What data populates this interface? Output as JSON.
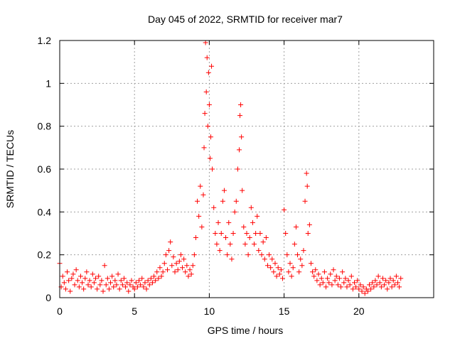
{
  "chart_data": {
    "type": "scatter",
    "title": "Day 045 of 2022, SRMTID for receiver mar7",
    "xlabel": "GPS time / hours",
    "ylabel": "SRMTID / TECUs",
    "xlim": [
      0,
      25
    ],
    "ylim": [
      0,
      1.2
    ],
    "x_ticks": [
      0,
      5,
      10,
      15,
      20
    ],
    "y_ticks": [
      0,
      0.2,
      0.4,
      0.6,
      0.8,
      1,
      1.2
    ],
    "x_tick_labels": [
      "0",
      "5",
      "10",
      "15",
      "20"
    ],
    "y_tick_labels": [
      "0",
      "0.2",
      "0.4",
      "0.6",
      "0.8",
      "1",
      "1.2"
    ],
    "grid": true,
    "marker": "+",
    "color": "#ff0000",
    "series": [
      {
        "name": "SRMTID",
        "points": [
          [
            0.0,
            0.16
          ],
          [
            0.1,
            0.05
          ],
          [
            0.2,
            0.1
          ],
          [
            0.3,
            0.07
          ],
          [
            0.4,
            0.04
          ],
          [
            0.5,
            0.12
          ],
          [
            0.6,
            0.08
          ],
          [
            0.7,
            0.03
          ],
          [
            0.8,
            0.09
          ],
          [
            0.9,
            0.11
          ],
          [
            1.0,
            0.06
          ],
          [
            1.1,
            0.13
          ],
          [
            1.2,
            0.08
          ],
          [
            1.3,
            0.05
          ],
          [
            1.4,
            0.1
          ],
          [
            1.5,
            0.07
          ],
          [
            1.6,
            0.04
          ],
          [
            1.7,
            0.09
          ],
          [
            1.8,
            0.12
          ],
          [
            1.9,
            0.06
          ],
          [
            2.0,
            0.08
          ],
          [
            2.1,
            0.05
          ],
          [
            2.2,
            0.11
          ],
          [
            2.3,
            0.07
          ],
          [
            2.4,
            0.09
          ],
          [
            2.5,
            0.04
          ],
          [
            2.6,
            0.1
          ],
          [
            2.7,
            0.06
          ],
          [
            2.8,
            0.08
          ],
          [
            2.9,
            0.03
          ],
          [
            3.0,
            0.15
          ],
          [
            3.1,
            0.06
          ],
          [
            3.2,
            0.09
          ],
          [
            3.3,
            0.04
          ],
          [
            3.4,
            0.07
          ],
          [
            3.5,
            0.1
          ],
          [
            3.6,
            0.05
          ],
          [
            3.7,
            0.08
          ],
          [
            3.8,
            0.06
          ],
          [
            3.9,
            0.11
          ],
          [
            4.0,
            0.04
          ],
          [
            4.1,
            0.08
          ],
          [
            4.2,
            0.06
          ],
          [
            4.3,
            0.09
          ],
          [
            4.4,
            0.05
          ],
          [
            4.5,
            0.07
          ],
          [
            4.6,
            0.03
          ],
          [
            4.7,
            0.06
          ],
          [
            4.8,
            0.08
          ],
          [
            4.9,
            0.05
          ],
          [
            5.0,
            0.04
          ],
          [
            5.1,
            0.07
          ],
          [
            5.2,
            0.05
          ],
          [
            5.3,
            0.08
          ],
          [
            5.4,
            0.06
          ],
          [
            5.5,
            0.09
          ],
          [
            5.6,
            0.05
          ],
          [
            5.7,
            0.07
          ],
          [
            5.8,
            0.04
          ],
          [
            5.9,
            0.08
          ],
          [
            6.0,
            0.06
          ],
          [
            6.1,
            0.09
          ],
          [
            6.2,
            0.07
          ],
          [
            6.3,
            0.1
          ],
          [
            6.4,
            0.08
          ],
          [
            6.5,
            0.12
          ],
          [
            6.6,
            0.09
          ],
          [
            6.7,
            0.14
          ],
          [
            6.8,
            0.1
          ],
          [
            6.9,
            0.12
          ],
          [
            7.0,
            0.16
          ],
          [
            7.1,
            0.2
          ],
          [
            7.2,
            0.13
          ],
          [
            7.3,
            0.22
          ],
          [
            7.4,
            0.26
          ],
          [
            7.5,
            0.15
          ],
          [
            7.6,
            0.19
          ],
          [
            7.7,
            0.12
          ],
          [
            7.8,
            0.16
          ],
          [
            7.9,
            0.13
          ],
          [
            8.0,
            0.17
          ],
          [
            8.1,
            0.2
          ],
          [
            8.2,
            0.14
          ],
          [
            8.3,
            0.18
          ],
          [
            8.4,
            0.12
          ],
          [
            8.5,
            0.15
          ],
          [
            8.6,
            0.1
          ],
          [
            8.7,
            0.13
          ],
          [
            8.8,
            0.11
          ],
          [
            8.9,
            0.15
          ],
          [
            9.0,
            0.2
          ],
          [
            9.1,
            0.28
          ],
          [
            9.2,
            0.45
          ],
          [
            9.3,
            0.38
          ],
          [
            9.4,
            0.52
          ],
          [
            9.5,
            0.33
          ],
          [
            9.6,
            0.48
          ],
          [
            9.65,
            0.7
          ],
          [
            9.7,
            0.86
          ],
          [
            9.75,
            1.19
          ],
          [
            9.8,
            0.96
          ],
          [
            9.85,
            1.12
          ],
          [
            9.9,
            0.8
          ],
          [
            9.95,
            1.05
          ],
          [
            10.0,
            0.9
          ],
          [
            10.05,
            0.65
          ],
          [
            10.1,
            0.75
          ],
          [
            10.15,
            1.08
          ],
          [
            10.2,
            0.6
          ],
          [
            10.3,
            0.42
          ],
          [
            10.4,
            0.3
          ],
          [
            10.5,
            0.25
          ],
          [
            10.6,
            0.35
          ],
          [
            10.7,
            0.22
          ],
          [
            10.8,
            0.3
          ],
          [
            10.9,
            0.45
          ],
          [
            11.0,
            0.5
          ],
          [
            11.1,
            0.28
          ],
          [
            11.2,
            0.2
          ],
          [
            11.3,
            0.35
          ],
          [
            11.4,
            0.25
          ],
          [
            11.5,
            0.18
          ],
          [
            11.6,
            0.3
          ],
          [
            11.7,
            0.4
          ],
          [
            11.8,
            0.45
          ],
          [
            11.9,
            0.6
          ],
          [
            12.0,
            0.69
          ],
          [
            12.05,
            0.85
          ],
          [
            12.1,
            0.9
          ],
          [
            12.15,
            0.75
          ],
          [
            12.2,
            0.5
          ],
          [
            12.3,
            0.33
          ],
          [
            12.4,
            0.25
          ],
          [
            12.5,
            0.3
          ],
          [
            12.6,
            0.2
          ],
          [
            12.7,
            0.28
          ],
          [
            12.8,
            0.42
          ],
          [
            12.9,
            0.35
          ],
          [
            13.0,
            0.25
          ],
          [
            13.1,
            0.3
          ],
          [
            13.2,
            0.38
          ],
          [
            13.3,
            0.22
          ],
          [
            13.4,
            0.3
          ],
          [
            13.5,
            0.2
          ],
          [
            13.6,
            0.26
          ],
          [
            13.7,
            0.18
          ],
          [
            13.8,
            0.28
          ],
          [
            13.9,
            0.15
          ],
          [
            14.0,
            0.2
          ],
          [
            14.1,
            0.14
          ],
          [
            14.2,
            0.18
          ],
          [
            14.3,
            0.12
          ],
          [
            14.4,
            0.16
          ],
          [
            14.5,
            0.1
          ],
          [
            14.6,
            0.14
          ],
          [
            14.7,
            0.11
          ],
          [
            14.8,
            0.13
          ],
          [
            14.9,
            0.09
          ],
          [
            15.0,
            0.41
          ],
          [
            15.1,
            0.3
          ],
          [
            15.2,
            0.2
          ],
          [
            15.3,
            0.12
          ],
          [
            15.4,
            0.16
          ],
          [
            15.5,
            0.1
          ],
          [
            15.6,
            0.14
          ],
          [
            15.7,
            0.25
          ],
          [
            15.8,
            0.33
          ],
          [
            15.9,
            0.2
          ],
          [
            16.0,
            0.12
          ],
          [
            16.1,
            0.18
          ],
          [
            16.2,
            0.15
          ],
          [
            16.3,
            0.22
          ],
          [
            16.4,
            0.45
          ],
          [
            16.5,
            0.58
          ],
          [
            16.55,
            0.52
          ],
          [
            16.6,
            0.3
          ],
          [
            16.7,
            0.34
          ],
          [
            16.8,
            0.16
          ],
          [
            16.9,
            0.12
          ],
          [
            17.0,
            0.1
          ],
          [
            17.1,
            0.13
          ],
          [
            17.2,
            0.08
          ],
          [
            17.3,
            0.11
          ],
          [
            17.4,
            0.06
          ],
          [
            17.5,
            0.09
          ],
          [
            17.6,
            0.07
          ],
          [
            17.7,
            0.12
          ],
          [
            17.8,
            0.05
          ],
          [
            17.9,
            0.09
          ],
          [
            18.0,
            0.07
          ],
          [
            18.1,
            0.11
          ],
          [
            18.2,
            0.06
          ],
          [
            18.3,
            0.13
          ],
          [
            18.4,
            0.08
          ],
          [
            18.5,
            0.1
          ],
          [
            18.6,
            0.06
          ],
          [
            18.7,
            0.09
          ],
          [
            18.8,
            0.05
          ],
          [
            18.9,
            0.12
          ],
          [
            19.0,
            0.07
          ],
          [
            19.1,
            0.09
          ],
          [
            19.2,
            0.05
          ],
          [
            19.3,
            0.08
          ],
          [
            19.4,
            0.06
          ],
          [
            19.5,
            0.1
          ],
          [
            19.6,
            0.04
          ],
          [
            19.7,
            0.07
          ],
          [
            19.8,
            0.05
          ],
          [
            19.9,
            0.08
          ],
          [
            20.0,
            0.04
          ],
          [
            20.1,
            0.06
          ],
          [
            20.2,
            0.03
          ],
          [
            20.3,
            0.05
          ],
          [
            20.4,
            0.02
          ],
          [
            20.5,
            0.04
          ],
          [
            20.6,
            0.03
          ],
          [
            20.7,
            0.06
          ],
          [
            20.8,
            0.04
          ],
          [
            20.9,
            0.07
          ],
          [
            21.0,
            0.05
          ],
          [
            21.1,
            0.08
          ],
          [
            21.2,
            0.06
          ],
          [
            21.3,
            0.1
          ],
          [
            21.4,
            0.07
          ],
          [
            21.5,
            0.05
          ],
          [
            21.6,
            0.09
          ],
          [
            21.7,
            0.06
          ],
          [
            21.8,
            0.08
          ],
          [
            21.9,
            0.04
          ],
          [
            22.0,
            0.07
          ],
          [
            22.1,
            0.09
          ],
          [
            22.2,
            0.05
          ],
          [
            22.3,
            0.08
          ],
          [
            22.4,
            0.06
          ],
          [
            22.5,
            0.1
          ],
          [
            22.6,
            0.07
          ],
          [
            22.7,
            0.05
          ],
          [
            22.8,
            0.09
          ]
        ]
      }
    ]
  }
}
